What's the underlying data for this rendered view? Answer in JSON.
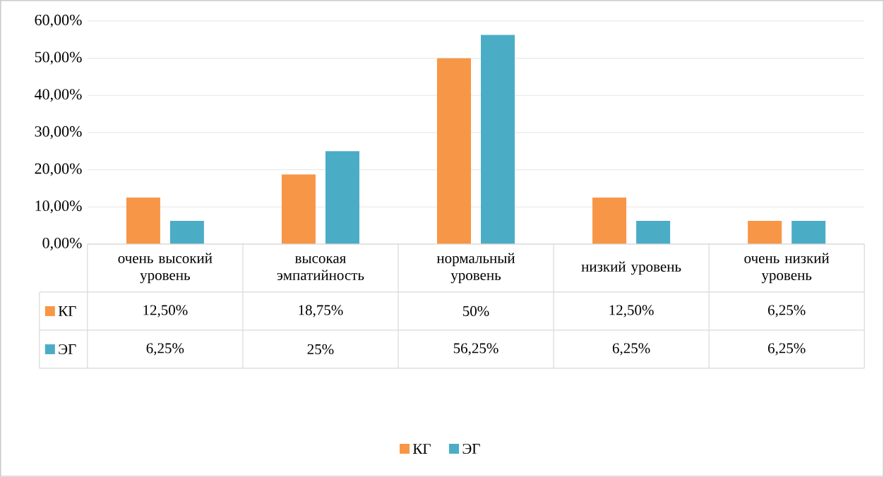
{
  "chart_data": {
    "type": "bar",
    "categories": [
      "очень высокий уровень",
      "высокая эмпатийность",
      "нормальный уровень",
      "низкий уровень",
      "очень низкий уровень"
    ],
    "series": [
      {
        "name": "КГ",
        "color": "#f79646",
        "values": [
          12.5,
          18.75,
          50,
          12.5,
          6.25
        ],
        "value_labels": [
          "12,50%",
          "18,75%",
          "50%",
          "12,50%",
          "6,25%"
        ]
      },
      {
        "name": "ЭГ",
        "color": "#4bacc6",
        "values": [
          6.25,
          25,
          56.25,
          6.25,
          6.25
        ],
        "value_labels": [
          "6,25%",
          "25%",
          "56,25%",
          "6,25%",
          "6,25%"
        ]
      }
    ],
    "ylim": [
      0,
      60
    ],
    "yticks": [
      {
        "value": 0,
        "label": "0,00%"
      },
      {
        "value": 10,
        "label": "10,00%"
      },
      {
        "value": 20,
        "label": "20,00%"
      },
      {
        "value": 30,
        "label": "30,00%"
      },
      {
        "value": 40,
        "label": "40,00%"
      },
      {
        "value": 50,
        "label": "50,00%"
      },
      {
        "value": 60,
        "label": "60,00%"
      }
    ],
    "grid": "y",
    "legend": "bottom"
  }
}
